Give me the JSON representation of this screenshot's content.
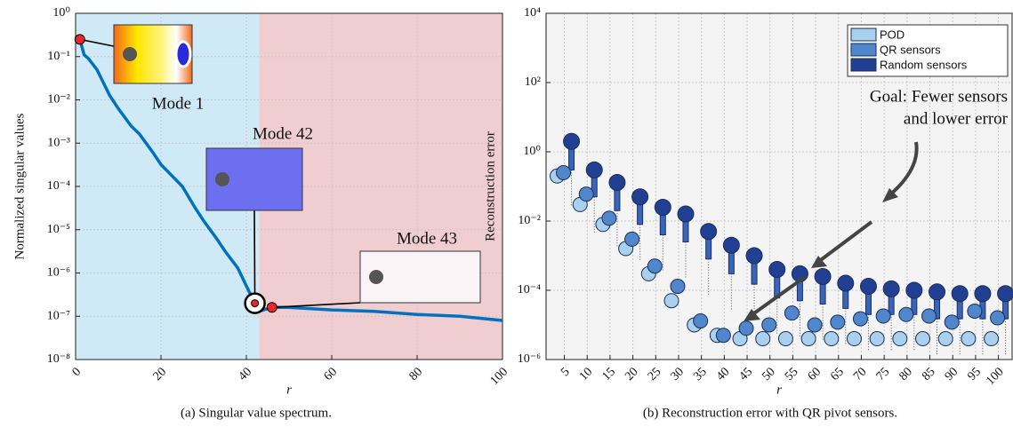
{
  "chart_data": [
    {
      "type": "line",
      "xlabel": "r",
      "ylabel": "Normalized singular values",
      "caption": "(a) Singular value spectrum.",
      "x": [
        1,
        2,
        3,
        5,
        8,
        10,
        13,
        15,
        18,
        20,
        23,
        25,
        28,
        30,
        33,
        35,
        38,
        40,
        42,
        43,
        44,
        46,
        50,
        60,
        70,
        80,
        90,
        100
      ],
      "series": [
        {
          "color": "#0072bd",
          "values": [
            0.25,
            0.11,
            0.09,
            0.05,
            0.0126,
            0.0063,
            0.0025,
            0.0016,
            0.00063,
            0.00032,
            0.00016,
            0.0001,
            3.2e-05,
            1.6e-05,
            6.3e-06,
            3.2e-06,
            1.3e-06,
            5e-07,
            2e-07,
            1.3e-07,
            1.4e-07,
            1.6e-07,
            1.6e-07,
            1.4e-07,
            1.3e-07,
            1.1e-07,
            1e-07,
            8e-08
          ]
        }
      ],
      "xlim": [
        0,
        100
      ],
      "xticks": [
        0,
        20,
        40,
        60,
        80,
        100
      ],
      "ylim": [
        1e-08,
        1
      ],
      "log_y": true,
      "grid": true,
      "yticks": [
        {
          "value": 1e-08,
          "label": "10⁻⁸"
        },
        {
          "value": 1e-07,
          "label": "10⁻⁷"
        },
        {
          "value": 1e-06,
          "label": "10⁻⁶"
        },
        {
          "value": 1e-05,
          "label": "10⁻⁵"
        },
        {
          "value": 0.0001,
          "label": "10⁻⁴"
        },
        {
          "value": 0.001,
          "label": "10⁻³"
        },
        {
          "value": 0.01,
          "label": "10⁻²"
        },
        {
          "value": 0.1,
          "label": "10⁻¹"
        },
        {
          "value": 1,
          "label": "10⁰"
        }
      ],
      "regions": [
        {
          "from": 0,
          "to": 43,
          "color": "#cfeaf6"
        },
        {
          "from": 43,
          "to": 100,
          "color": "#f0cdd0"
        }
      ],
      "annotations": [
        {
          "text": "Mode 1",
          "x": 1,
          "y": 0.25
        },
        {
          "text": "Mode 42",
          "x": 42,
          "y": 2e-07
        },
        {
          "text": "Mode 43",
          "x": 46,
          "y": 1.6e-07
        }
      ]
    },
    {
      "type": "box",
      "xlabel": "r",
      "ylabel": "Reconstruction error",
      "caption": "(b) Reconstruction error with QR pivot sensors.",
      "x": [
        5,
        10,
        15,
        20,
        25,
        30,
        35,
        40,
        45,
        50,
        55,
        60,
        65,
        70,
        75,
        80,
        85,
        90,
        95,
        100
      ],
      "series": [
        {
          "name": "POD",
          "color": "#a9d0ee",
          "values": [
            0.2,
            0.03,
            0.008,
            0.0016,
            0.0003,
            5e-05,
            1e-05,
            5e-06,
            4e-06,
            4e-06,
            4e-06,
            4e-06,
            4e-06,
            4e-06,
            4e-06,
            4e-06,
            4e-06,
            4e-06,
            4e-06,
            4e-06
          ]
        },
        {
          "name": "QR sensors",
          "color": "#4f86cc",
          "values": [
            0.25,
            0.06,
            0.012,
            0.003,
            0.0005,
            0.00013,
            1.3e-05,
            5e-06,
            8e-06,
            1e-05,
            2.2e-05,
            1e-05,
            1.2e-05,
            1.5e-05,
            1.8e-05,
            2e-05,
            1.8e-05,
            1.2e-05,
            2.5e-05,
            1.6e-05
          ]
        },
        {
          "name": "Random sensors",
          "color": "#213f93",
          "values": [
            2,
            0.3,
            0.13,
            0.05,
            0.025,
            0.016,
            0.005,
            0.002,
            0.001,
            0.0004,
            0.0003,
            0.00025,
            0.00016,
            0.00013,
            0.00011,
            0.0001,
            9e-05,
            8e-05,
            8e-05,
            8e-05
          ],
          "box_low": [
            0.3,
            0.05,
            0.02,
            0.008,
            0.004,
            0.0025,
            0.0008,
            0.0003,
            0.00015,
            6e-05,
            5e-05,
            4e-05,
            3e-05,
            2e-05,
            2e-05,
            2e-05,
            1.5e-05,
            1.5e-05,
            1.5e-05,
            1.5e-05
          ]
        }
      ],
      "xlim": [
        1,
        103
      ],
      "xticks": [
        5,
        10,
        15,
        20,
        25,
        30,
        35,
        40,
        45,
        50,
        55,
        60,
        65,
        70,
        75,
        80,
        85,
        90,
        95,
        100
      ],
      "ylim": [
        1e-06,
        10000
      ],
      "log_y": true,
      "grid": true,
      "yticks": [
        {
          "value": 1e-06,
          "label": "10⁻⁶"
        },
        {
          "value": 0.0001,
          "label": "10⁻⁴"
        },
        {
          "value": 0.01,
          "label": "10⁻²"
        },
        {
          "value": 1,
          "label": "10⁰"
        },
        {
          "value": 100,
          "label": "10²"
        },
        {
          "value": 10000,
          "label": "10⁴"
        }
      ],
      "legend": "top-right",
      "annotation_lines": [
        "Goal: Fewer sensors",
        "and lower error"
      ]
    }
  ]
}
